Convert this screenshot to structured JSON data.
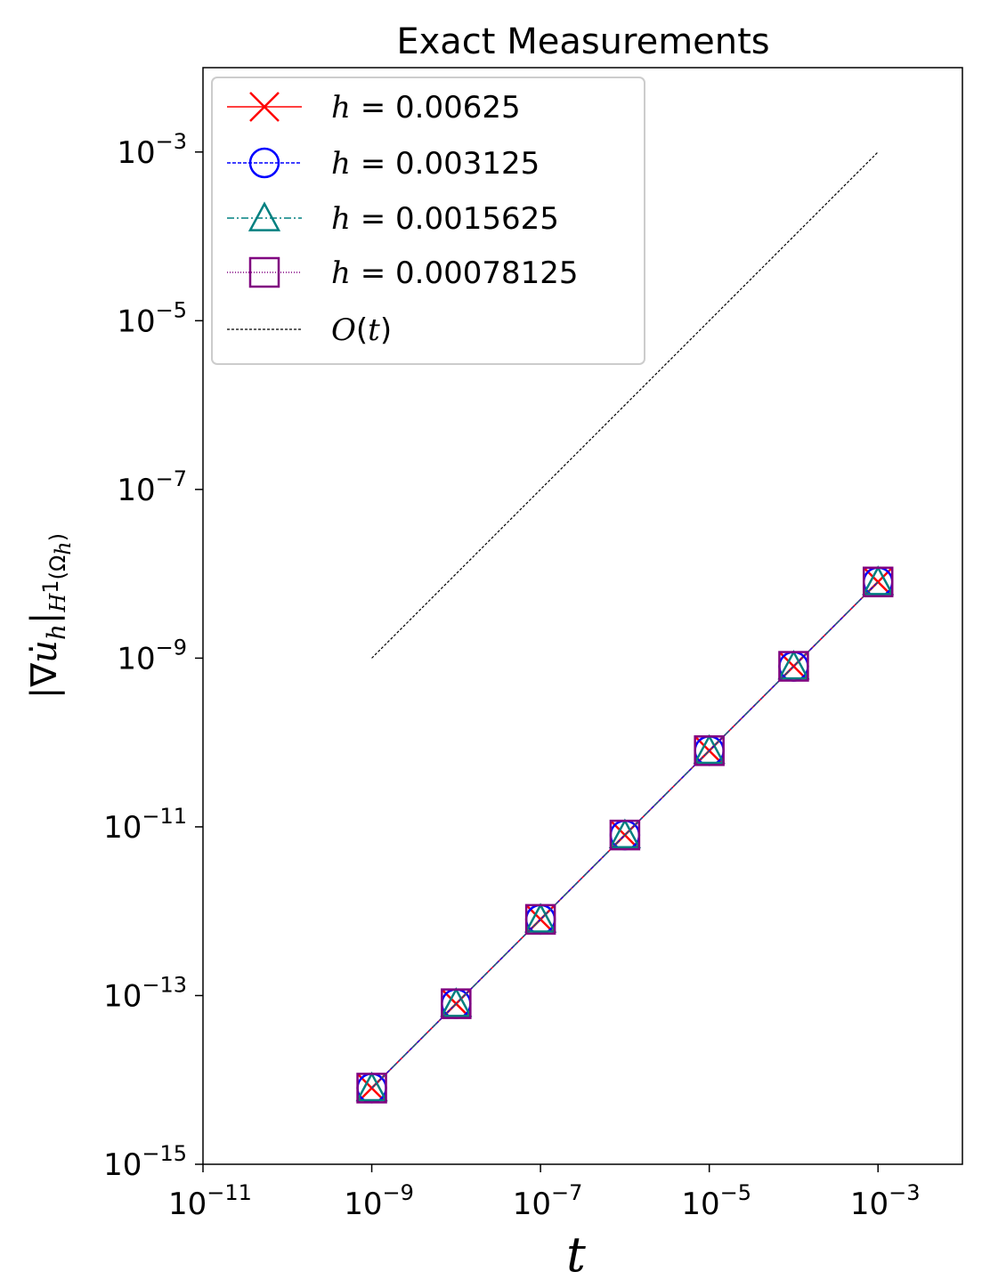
{
  "chart_data": {
    "type": "line",
    "title": "Exact Measurements",
    "xlabel": "t",
    "ylabel": "|∇u̇_h|_{H^1(Ω_h)}",
    "xscale": "log",
    "yscale": "log",
    "xlim": [
      1e-11,
      0.01
    ],
    "ylim": [
      1e-15,
      0.01
    ],
    "xticks": [
      {
        "base": "10",
        "exp": "−11",
        "value": 1e-11
      },
      {
        "base": "10",
        "exp": "−9",
        "value": 1e-09
      },
      {
        "base": "10",
        "exp": "−7",
        "value": 1e-07
      },
      {
        "base": "10",
        "exp": "−5",
        "value": 1e-05
      },
      {
        "base": "10",
        "exp": "−3",
        "value": 0.001
      }
    ],
    "yticks": [
      {
        "base": "10",
        "exp": "−15",
        "value": 1e-15
      },
      {
        "base": "10",
        "exp": "−13",
        "value": 1e-13
      },
      {
        "base": "10",
        "exp": "−11",
        "value": 1e-11
      },
      {
        "base": "10",
        "exp": "−9",
        "value": 1e-09
      },
      {
        "base": "10",
        "exp": "−7",
        "value": 1e-07
      },
      {
        "base": "10",
        "exp": "−5",
        "value": 1e-05
      },
      {
        "base": "10",
        "exp": "−3",
        "value": 0.001
      }
    ],
    "x": [
      1e-09,
      1e-08,
      1e-07,
      1e-06,
      1e-05,
      0.0001,
      0.001
    ],
    "series": [
      {
        "name_var": "h",
        "name_eq": " = ",
        "name_val": "0.00625",
        "color": "#ff0000",
        "marker": "x",
        "dash": "",
        "values": [
          8e-15,
          8e-14,
          8e-13,
          8e-12,
          8e-11,
          8e-10,
          8e-09
        ]
      },
      {
        "name_var": "h",
        "name_eq": " = ",
        "name_val": "0.003125",
        "color": "#0000ff",
        "marker": "circle",
        "dash": "4,2",
        "values": [
          8e-15,
          8e-14,
          8e-13,
          8e-12,
          8e-11,
          8e-10,
          8e-09
        ]
      },
      {
        "name_var": "h",
        "name_eq": " = ",
        "name_val": "0.0015625",
        "color": "#008080",
        "marker": "triangle",
        "dash": "8,3,2,3",
        "values": [
          8e-15,
          8e-14,
          8e-13,
          8e-12,
          8e-11,
          8e-10,
          8e-09
        ]
      },
      {
        "name_var": "h",
        "name_eq": " = ",
        "name_val": "0.00078125",
        "color": "#800080",
        "marker": "square",
        "dash": "1,2",
        "values": [
          8e-15,
          8e-14,
          8e-13,
          8e-12,
          8e-11,
          8e-10,
          8e-09
        ]
      }
    ],
    "reference": {
      "name_pre": "O(",
      "name_var": "t",
      "name_post": ")",
      "color": "#000000",
      "dash": "3,2",
      "x": [
        1e-09,
        0.001
      ],
      "values": [
        1e-09,
        0.001
      ]
    },
    "legend_position": "top-left",
    "grid": false
  }
}
